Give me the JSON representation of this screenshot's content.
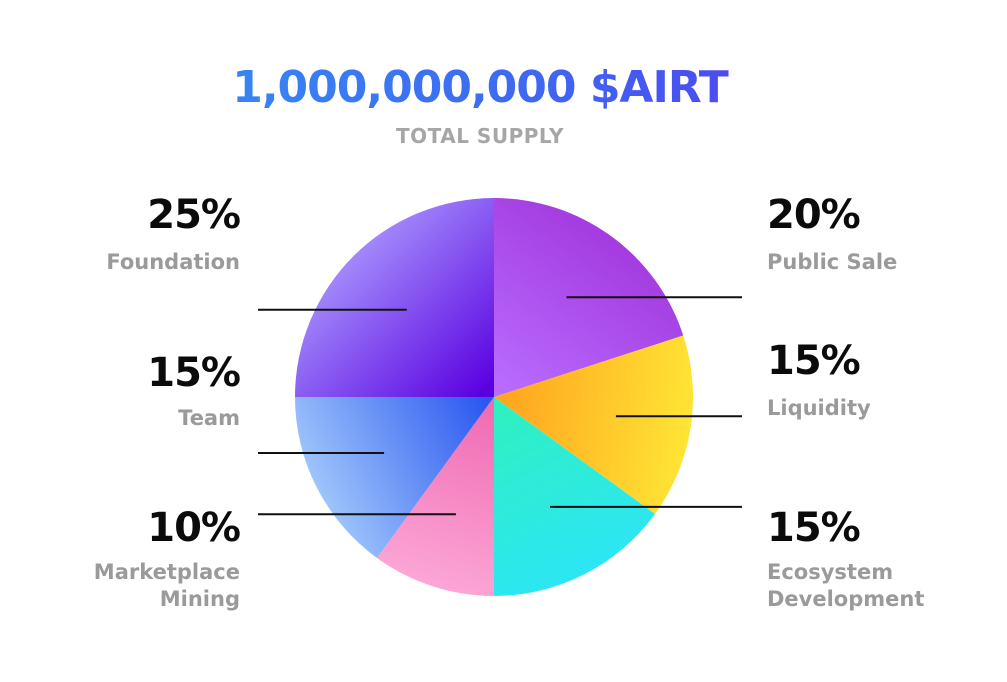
{
  "header": {
    "title": "1,000,000,000 $AIRT",
    "subtitle": "TOTAL SUPPLY"
  },
  "colors": {
    "title_gradient": [
      "#2f9cf5",
      "#5a2cf0"
    ],
    "percent_text": "#0b0b0b",
    "label_text": "#9a9a9a",
    "leader_line": "#111111"
  },
  "chart_data": {
    "type": "pie",
    "title": "1,000,000,000 $AIRT",
    "subtitle": "TOTAL SUPPLY",
    "slices": [
      {
        "label": "Public Sale",
        "value": 20,
        "display": "20%",
        "colors": [
          "#b86cff",
          "#a43be0"
        ]
      },
      {
        "label": "Liquidity",
        "value": 15,
        "display": "15%",
        "colors": [
          "#ffa51f",
          "#ffe535"
        ]
      },
      {
        "label": "Ecosystem Development",
        "value": 15,
        "display": "15%",
        "colors": [
          "#2ff0c0",
          "#2ce6f4"
        ]
      },
      {
        "label": "Marketplace Mining",
        "value": 10,
        "display": "10%",
        "colors": [
          "#f06bb3",
          "#fca6d6"
        ]
      },
      {
        "label": "Team",
        "value": 15,
        "display": "15%",
        "colors": [
          "#2b58f0",
          "#9ec4fb"
        ]
      },
      {
        "label": "Foundation",
        "value": 25,
        "display": "25%",
        "colors": [
          "#5a00e0",
          "#a188fb"
        ]
      }
    ]
  }
}
